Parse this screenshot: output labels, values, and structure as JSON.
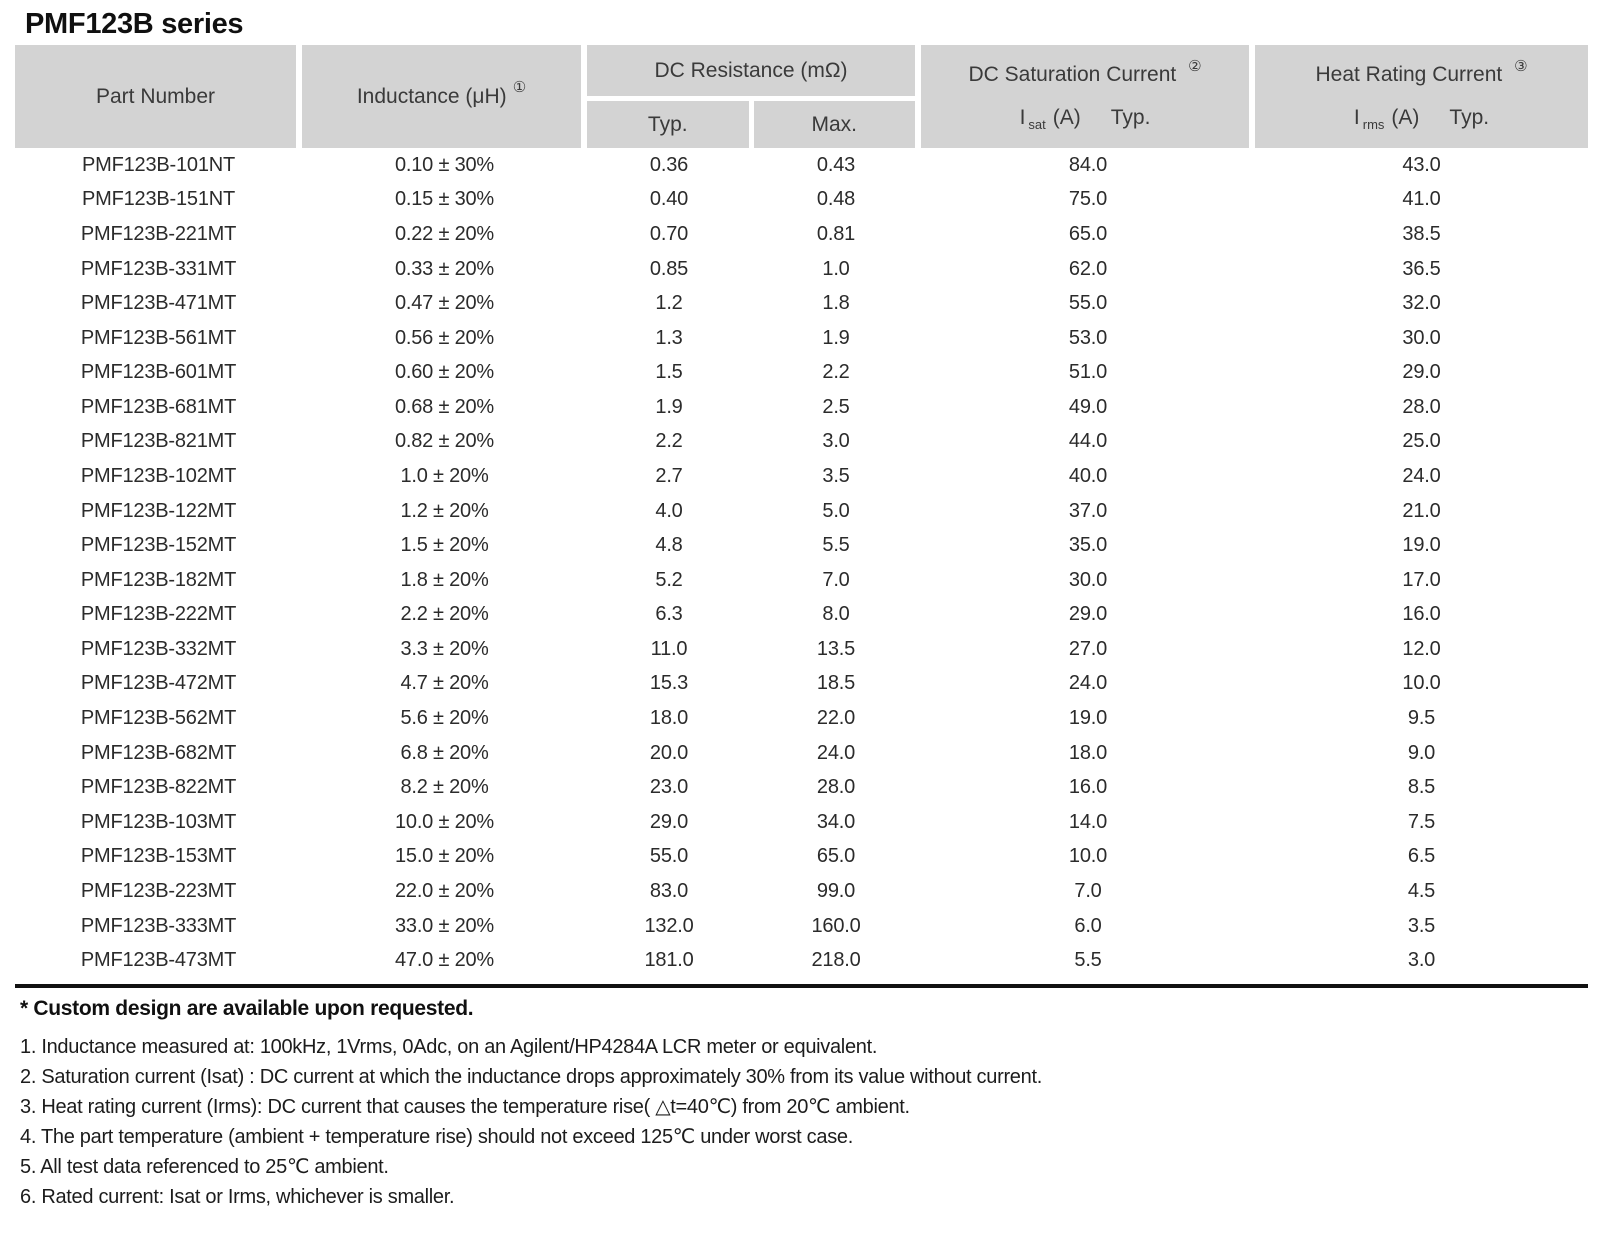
{
  "title": "PMF123B series",
  "colors": {
    "header_bg": "#d3d3d3",
    "text": "#2b2b2b",
    "rule": "#111111"
  },
  "table": {
    "header": {
      "part_number": "Part Number",
      "inductance": {
        "label": "Inductance (μH)",
        "note_ref": "①"
      },
      "dc_resistance": {
        "label": "DC Resistance (mΩ)",
        "typ": "Typ.",
        "max": "Max."
      },
      "dc_saturation": {
        "label": "DC Saturation Current",
        "note_ref": "②",
        "symbol": "I",
        "symbol_sub": "sat",
        "unit": "(A)",
        "typ": "Typ."
      },
      "heat_rating": {
        "label": "Heat Rating Current",
        "note_ref": "③",
        "symbol": "I",
        "symbol_sub": "rms",
        "unit": "(A)",
        "typ": "Typ."
      }
    },
    "columns": [
      "Part Number",
      "Inductance (μH)",
      "DC Resistance Typ. (mΩ)",
      "DC Resistance Max. (mΩ)",
      "DC Saturation Current Isat (A) Typ.",
      "Heat Rating Current Irms (A) Typ."
    ],
    "rows": [
      [
        "PMF123B-101NT",
        "0.10 ± 30%",
        "0.36",
        "0.43",
        "84.0",
        "43.0"
      ],
      [
        "PMF123B-151NT",
        "0.15 ± 30%",
        "0.40",
        "0.48",
        "75.0",
        "41.0"
      ],
      [
        "PMF123B-221MT",
        "0.22 ± 20%",
        "0.70",
        "0.81",
        "65.0",
        "38.5"
      ],
      [
        "PMF123B-331MT",
        "0.33 ± 20%",
        "0.85",
        "1.0",
        "62.0",
        "36.5"
      ],
      [
        "PMF123B-471MT",
        "0.47 ± 20%",
        "1.2",
        "1.8",
        "55.0",
        "32.0"
      ],
      [
        "PMF123B-561MT",
        "0.56 ± 20%",
        "1.3",
        "1.9",
        "53.0",
        "30.0"
      ],
      [
        "PMF123B-601MT",
        "0.60 ± 20%",
        "1.5",
        "2.2",
        "51.0",
        "29.0"
      ],
      [
        "PMF123B-681MT",
        "0.68 ± 20%",
        "1.9",
        "2.5",
        "49.0",
        "28.0"
      ],
      [
        "PMF123B-821MT",
        "0.82 ± 20%",
        "2.2",
        "3.0",
        "44.0",
        "25.0"
      ],
      [
        "PMF123B-102MT",
        "1.0 ± 20%",
        "2.7",
        "3.5",
        "40.0",
        "24.0"
      ],
      [
        "PMF123B-122MT",
        "1.2 ± 20%",
        "4.0",
        "5.0",
        "37.0",
        "21.0"
      ],
      [
        "PMF123B-152MT",
        "1.5 ± 20%",
        "4.8",
        "5.5",
        "35.0",
        "19.0"
      ],
      [
        "PMF123B-182MT",
        "1.8 ± 20%",
        "5.2",
        "7.0",
        "30.0",
        "17.0"
      ],
      [
        "PMF123B-222MT",
        "2.2 ± 20%",
        "6.3",
        "8.0",
        "29.0",
        "16.0"
      ],
      [
        "PMF123B-332MT",
        "3.3 ± 20%",
        "11.0",
        "13.5",
        "27.0",
        "12.0"
      ],
      [
        "PMF123B-472MT",
        "4.7 ± 20%",
        "15.3",
        "18.5",
        "24.0",
        "10.0"
      ],
      [
        "PMF123B-562MT",
        "5.6 ± 20%",
        "18.0",
        "22.0",
        "19.0",
        "9.5"
      ],
      [
        "PMF123B-682MT",
        "6.8 ± 20%",
        "20.0",
        "24.0",
        "18.0",
        "9.0"
      ],
      [
        "PMF123B-822MT",
        "8.2 ± 20%",
        "23.0",
        "28.0",
        "16.0",
        "8.5"
      ],
      [
        "PMF123B-103MT",
        "10.0 ± 20%",
        "29.0",
        "34.0",
        "14.0",
        "7.5"
      ],
      [
        "PMF123B-153MT",
        "15.0 ± 20%",
        "55.0",
        "65.0",
        "10.0",
        "6.5"
      ],
      [
        "PMF123B-223MT",
        "22.0 ± 20%",
        "83.0",
        "99.0",
        "7.0",
        "4.5"
      ],
      [
        "PMF123B-333MT",
        "33.0 ± 20%",
        "132.0",
        "160.0",
        "6.0",
        "3.5"
      ],
      [
        "PMF123B-473MT",
        "47.0 ± 20%",
        "181.0",
        "218.0",
        "5.5",
        "3.0"
      ]
    ]
  },
  "footnote_bold": "* Custom design are available upon requested.",
  "notes": [
    "1. Inductance measured at: 100kHz, 1Vrms, 0Adc, on an Agilent/HP4284A LCR meter or equivalent.",
    "2. Saturation current (Isat) : DC current at which the inductance drops approximately 30% from its value without current.",
    "3. Heat rating current (Irms): DC current that causes the temperature rise( △t=40℃) from 20℃ ambient.",
    "4. The part temperature (ambient + temperature rise) should not exceed 125℃ under worst case.",
    "5. All test data referenced to 25℃ ambient.",
    "6. Rated current: Isat or Irms, whichever is smaller."
  ]
}
